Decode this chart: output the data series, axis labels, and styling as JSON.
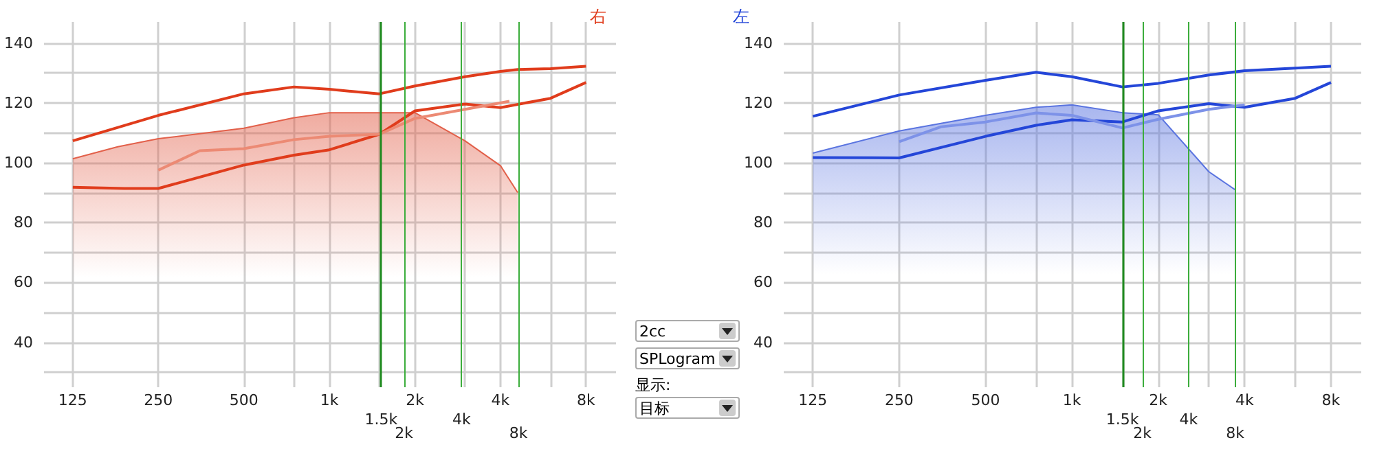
{
  "chart_data": [
    {
      "type": "line",
      "title": "右",
      "log": "x",
      "grid": true,
      "xlim": [
        99,
        10200
      ],
      "ylim": [
        25,
        147
      ],
      "xticks": [
        125,
        250,
        500,
        {
          "value": 750,
          "label": null
        },
        {
          "value": 1000,
          "label": "1k"
        },
        {
          "value": 1500,
          "label": null
        },
        {
          "value": 2000,
          "label": "2k"
        },
        {
          "value": 3000,
          "label": null
        },
        {
          "value": 4000,
          "label": "4k"
        },
        {
          "value": 6000,
          "label": null
        },
        {
          "value": 8000,
          "label": "8k"
        }
      ],
      "yticks": [
        {
          "value": 30,
          "label": null
        },
        40,
        {
          "value": 50,
          "label": null
        },
        60,
        {
          "value": 70,
          "label": null
        },
        80,
        {
          "value": 90,
          "label": null
        },
        100,
        {
          "value": 110,
          "label": null
        },
        120,
        {
          "value": 130,
          "label": null
        },
        140
      ],
      "ref_lines": [
        {
          "axis": "x",
          "value": 1520,
          "label": "1.5k",
          "color": "#1f8a1f"
        },
        {
          "axis": "x",
          "value": 1830,
          "label": "2k",
          "color": "#3cad3c"
        },
        {
          "axis": "x",
          "value": 2920,
          "label": "4k",
          "color": "#3cad3c"
        },
        {
          "axis": "x",
          "value": 4630,
          "label": "8k",
          "color": "#3cad3c"
        }
      ],
      "series": [
        {
          "type": "area",
          "color": "#e2604a",
          "x": [
            125,
            180,
            250,
            500,
            750,
            1000,
            1500,
            2000,
            3000,
            4000,
            4600
          ],
          "values": [
            101.3,
            105.3,
            108,
            111.5,
            115,
            116.7,
            116.7,
            116.7,
            107.3,
            99,
            90
          ]
        },
        {
          "type": "line",
          "color": "#e03c1c",
          "x": [
            125,
            250,
            500,
            750,
            1000,
            1500,
            2000,
            3000,
            4000,
            4600,
            6000,
            8000
          ],
          "values": [
            107.3,
            115.8,
            123,
            125.3,
            124.5,
            123,
            125.6,
            128.7,
            130.5,
            131.1,
            131.4,
            132.2
          ]
        },
        {
          "type": "line",
          "color": "#e03c1c",
          "x": [
            125,
            190,
            250,
            500,
            750,
            1000,
            1500,
            2000,
            3000,
            4000,
            6000,
            8000
          ],
          "values": [
            91.8,
            91.4,
            91.4,
            99.2,
            102.5,
            104.3,
            109.5,
            117.3,
            119.6,
            118.4,
            121.5,
            126.8
          ]
        },
        {
          "type": "line",
          "color": "#ec8a74",
          "x": [
            250,
            350,
            500,
            750,
            1000,
            1500,
            2000,
            3000,
            4300
          ],
          "values": [
            97.5,
            104,
            104.7,
            107.7,
            108.8,
            109.5,
            114.8,
            117.8,
            120.5
          ]
        }
      ]
    },
    {
      "type": "other",
      "annotations": [
        "2cc",
        "SPLogram",
        "显示:",
        "目标"
      ]
    },
    {
      "type": "line",
      "title": "左",
      "log": "x",
      "grid": true,
      "xlim": [
        99,
        10200
      ],
      "ylim": [
        25,
        147
      ],
      "xticks": [
        125,
        250,
        500,
        {
          "value": 750,
          "label": null
        },
        {
          "value": 1000,
          "label": "1k"
        },
        {
          "value": 1500,
          "label": null
        },
        {
          "value": 2000,
          "label": "2k"
        },
        {
          "value": 3000,
          "label": null
        },
        {
          "value": 4000,
          "label": "4k"
        },
        {
          "value": 6000,
          "label": null
        },
        {
          "value": 8000,
          "label": "8k"
        }
      ],
      "yticks": [
        {
          "value": 30,
          "label": null
        },
        40,
        {
          "value": 50,
          "label": null
        },
        60,
        {
          "value": 70,
          "label": null
        },
        80,
        {
          "value": 90,
          "label": null
        },
        100,
        {
          "value": 110,
          "label": null
        },
        120,
        {
          "value": 130,
          "label": null
        },
        140
      ],
      "ref_lines": [
        {
          "axis": "x",
          "value": 1500,
          "label": "1.5k",
          "color": "#1f8a1f"
        },
        {
          "axis": "x",
          "value": 1760,
          "label": "2k",
          "color": "#3cad3c"
        },
        {
          "axis": "x",
          "value": 2550,
          "label": "4k",
          "color": "#3cad3c"
        },
        {
          "axis": "x",
          "value": 3710,
          "label": "8k",
          "color": "#3cad3c"
        }
      ],
      "series": [
        {
          "type": "area",
          "color": "#5a74e0",
          "x": [
            125,
            250,
            500,
            750,
            1000,
            1500,
            2000,
            3000,
            3700
          ],
          "values": [
            103.2,
            110.6,
            115.8,
            118.5,
            119.3,
            116.7,
            116,
            97,
            91
          ]
        },
        {
          "type": "line",
          "color": "#2446d8",
          "x": [
            125,
            250,
            500,
            750,
            1000,
            1500,
            2000,
            3000,
            4000,
            6000,
            8000
          ],
          "values": [
            115.5,
            122.6,
            127.5,
            130.2,
            128.7,
            125.3,
            126.5,
            129.3,
            130.7,
            131.6,
            132.2
          ]
        },
        {
          "type": "line",
          "color": "#2446d8",
          "x": [
            125,
            250,
            500,
            750,
            1000,
            1500,
            2000,
            3000,
            4000,
            6000,
            8000
          ],
          "values": [
            101.7,
            101.6,
            108.8,
            112.5,
            114.3,
            113.6,
            117.3,
            119.7,
            118.5,
            121.5,
            126.8
          ]
        },
        {
          "type": "line",
          "color": "#7d92e8",
          "x": [
            250,
            350,
            500,
            750,
            1000,
            1500,
            2000,
            3000,
            4000
          ],
          "values": [
            107,
            112,
            113.6,
            116.6,
            115.8,
            111.6,
            114.5,
            117.8,
            119.3
          ]
        }
      ]
    }
  ]
}
